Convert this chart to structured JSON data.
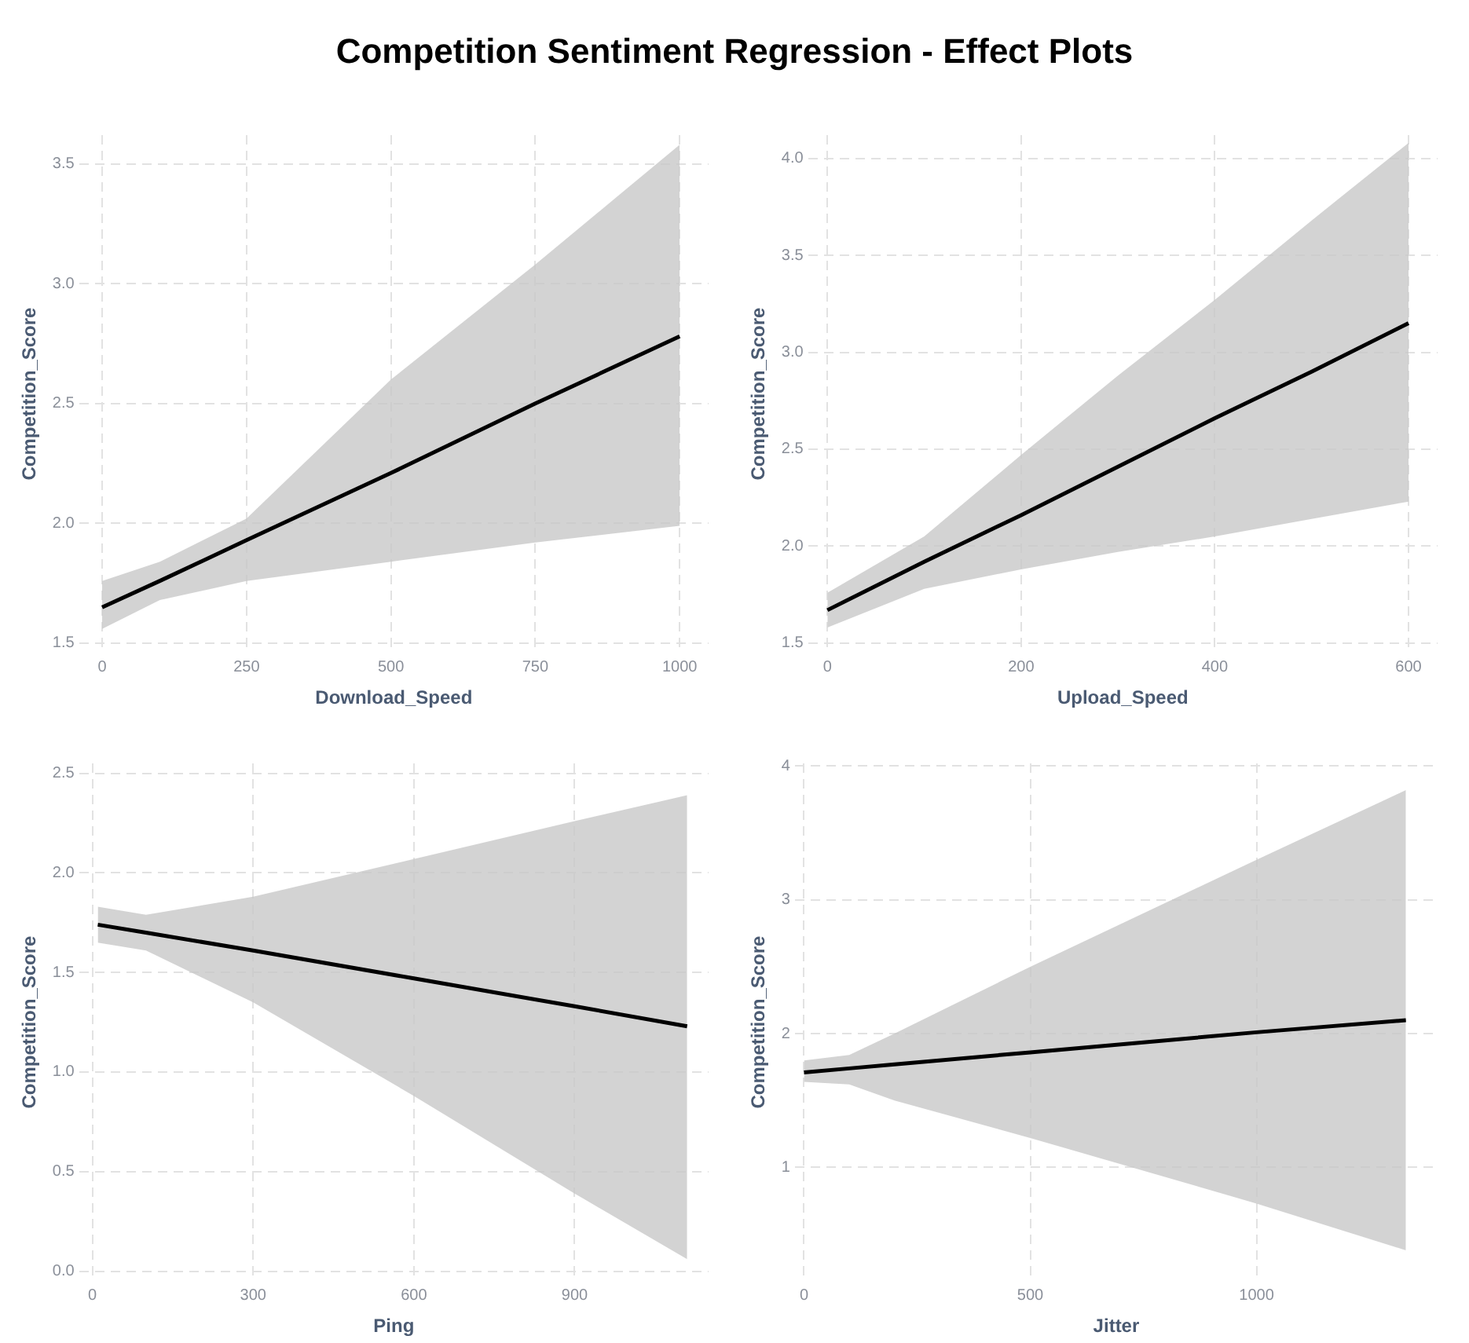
{
  "chart_data": [
    {
      "type": "line",
      "title": "Competition Sentiment Regression - Effect Plots",
      "xlabel": "Download_Speed",
      "ylabel": "Competition_Score",
      "xlim": [
        -40,
        1050
      ],
      "xticks": [
        0,
        250,
        500,
        750,
        1000
      ],
      "ylim": [
        1.46,
        3.62
      ],
      "yticks": [
        1.5,
        {
          "value": 2,
          "label": "2.0"
        },
        2.5,
        {
          "value": 3,
          "label": "3.0"
        },
        3.5
      ],
      "grid": true,
      "marker": "none",
      "line_style": "solid",
      "series": [
        {
          "color": "#000000",
          "x": [
            0,
            100,
            250,
            500,
            750,
            1000
          ],
          "values": [
            1.65,
            1.76,
            1.93,
            2.21,
            2.5,
            2.78
          ],
          "lower": [
            1.56,
            1.68,
            1.76,
            1.84,
            1.92,
            1.99
          ],
          "upper": [
            1.76,
            1.84,
            2.02,
            2.6,
            3.08,
            3.58
          ]
        }
      ]
    },
    {
      "type": "line",
      "xlabel": "Upload_Speed",
      "ylabel": "Competition_Score",
      "xlim": [
        -20,
        630
      ],
      "xticks": [
        0,
        200,
        400,
        600
      ],
      "ylim": [
        1.45,
        4.12
      ],
      "yticks": [
        1.5,
        {
          "value": 2,
          "label": "2.0"
        },
        2.5,
        {
          "value": 3,
          "label": "3.0"
        },
        3.5,
        {
          "value": 4,
          "label": "4.0"
        }
      ],
      "grid": true,
      "marker": "none",
      "line_style": "solid",
      "series": [
        {
          "color": "#000000",
          "x": [
            0,
            100,
            200,
            300,
            400,
            500,
            600
          ],
          "values": [
            1.67,
            1.92,
            2.16,
            2.41,
            2.66,
            2.9,
            3.15
          ],
          "lower": [
            1.58,
            1.78,
            1.88,
            1.97,
            2.05,
            2.14,
            2.23
          ],
          "upper": [
            1.76,
            2.05,
            2.47,
            2.88,
            3.27,
            3.68,
            4.08
          ]
        }
      ]
    },
    {
      "type": "line",
      "xlabel": "Ping",
      "ylabel": "Competition_Score",
      "xlim": [
        -25,
        1150
      ],
      "xticks": [
        0,
        300,
        600,
        900
      ],
      "ylim": [
        -0.05,
        2.55
      ],
      "yticks": [
        {
          "value": 0,
          "label": "0.0"
        },
        0.5,
        {
          "value": 1,
          "label": "1.0"
        },
        1.5,
        {
          "value": 2,
          "label": "2.0"
        },
        2.5
      ],
      "grid": true,
      "marker": "none",
      "line_style": "solid",
      "series": [
        {
          "color": "#000000",
          "x": [
            10,
            100,
            300,
            600,
            900,
            1110
          ],
          "values": [
            1.74,
            1.7,
            1.61,
            1.47,
            1.33,
            1.23
          ],
          "lower": [
            1.65,
            1.61,
            1.35,
            0.88,
            0.39,
            0.06
          ],
          "upper": [
            1.83,
            1.79,
            1.88,
            2.07,
            2.26,
            2.39
          ]
        }
      ]
    },
    {
      "type": "line",
      "xlabel": "Jitter",
      "ylabel": "Competition_Score",
      "xlim": [
        -20,
        1400
      ],
      "xticks": [
        0,
        500,
        1000
      ],
      "ylim": [
        0.15,
        4.02
      ],
      "yticks": [
        1,
        2,
        3,
        4
      ],
      "grid": true,
      "marker": "none",
      "line_style": "solid",
      "series": [
        {
          "color": "#000000",
          "x": [
            0,
            100,
            200,
            500,
            1000,
            1330
          ],
          "values": [
            1.71,
            1.74,
            1.77,
            1.86,
            2.01,
            2.1
          ],
          "lower": [
            1.64,
            1.62,
            1.5,
            1.22,
            0.73,
            0.38
          ],
          "upper": [
            1.8,
            1.84,
            2.0,
            2.5,
            3.3,
            3.82
          ]
        }
      ]
    }
  ]
}
